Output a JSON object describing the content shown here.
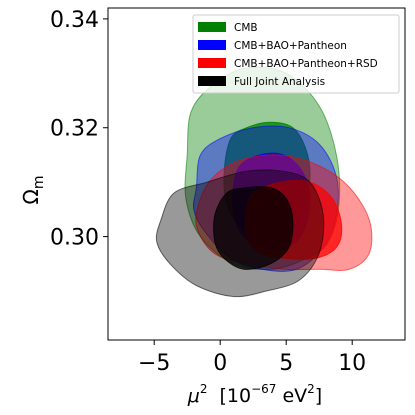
{
  "chart_data": {
    "type": "contour",
    "title": "",
    "xlabel": {
      "base": "μ",
      "sup": "2",
      "unit_prefix": "[10",
      "unit_exp": "−67",
      "unit_suffix": " eV",
      "unit_sup": "2",
      "close": "]"
    },
    "ylabel": {
      "base": "Ω",
      "sub": "m"
    },
    "xlim": [
      -8.5,
      14
    ],
    "ylim": [
      0.281,
      0.342
    ],
    "xticks": [
      {
        "value": -5,
        "label": "−5"
      },
      {
        "value": 0,
        "label": "0"
      },
      {
        "value": 5,
        "label": "5"
      },
      {
        "value": 10,
        "label": "10"
      }
    ],
    "yticks": [
      {
        "value": 0.3,
        "label": "0.30"
      },
      {
        "value": 0.32,
        "label": "0.32"
      },
      {
        "value": 0.34,
        "label": "0.34"
      }
    ],
    "legend_position": "top-right",
    "series": [
      {
        "name": "CMB",
        "color": "#008000",
        "outer": [
          [
            -2.5,
            0.315
          ],
          [
            -2.2,
            0.323
          ],
          [
            -0.5,
            0.328
          ],
          [
            2.0,
            0.331
          ],
          [
            5.0,
            0.33
          ],
          [
            7.5,
            0.324
          ],
          [
            8.8,
            0.315
          ],
          [
            9.0,
            0.306
          ],
          [
            8.2,
            0.299
          ],
          [
            6.5,
            0.296
          ],
          [
            4.0,
            0.294
          ],
          [
            1.0,
            0.295
          ],
          [
            -1.5,
            0.3
          ],
          [
            -2.6,
            0.307
          ]
        ],
        "inner": [
          [
            0.8,
            0.318
          ],
          [
            2.0,
            0.32
          ],
          [
            3.8,
            0.321
          ],
          [
            5.5,
            0.32
          ],
          [
            6.5,
            0.316
          ],
          [
            6.8,
            0.311
          ],
          [
            6.3,
            0.305
          ],
          [
            5.0,
            0.301
          ],
          [
            3.2,
            0.3
          ],
          [
            1.5,
            0.302
          ],
          [
            0.5,
            0.306
          ],
          [
            0.3,
            0.312
          ]
        ]
      },
      {
        "name": "CMB+BAO+Pantheon",
        "color": "#0000ff",
        "outer": [
          [
            -1.8,
            0.309
          ],
          [
            -1.5,
            0.315
          ],
          [
            0.0,
            0.318
          ],
          [
            2.5,
            0.32
          ],
          [
            5.2,
            0.32
          ],
          [
            7.5,
            0.317
          ],
          [
            8.8,
            0.311
          ],
          [
            8.8,
            0.304
          ],
          [
            7.8,
            0.298
          ],
          [
            5.8,
            0.294
          ],
          [
            3.2,
            0.294
          ],
          [
            0.8,
            0.296
          ],
          [
            -1.2,
            0.301
          ],
          [
            -2.0,
            0.305
          ]
        ],
        "inner": [
          [
            1.5,
            0.313
          ],
          [
            3.0,
            0.315
          ],
          [
            4.8,
            0.315
          ],
          [
            6.2,
            0.312
          ],
          [
            6.8,
            0.307
          ],
          [
            6.3,
            0.301
          ],
          [
            5.0,
            0.298
          ],
          [
            3.2,
            0.298
          ],
          [
            1.8,
            0.3
          ],
          [
            1.0,
            0.304
          ],
          [
            1.0,
            0.309
          ]
        ]
      },
      {
        "name": "CMB+BAO+Pantheon+RSD",
        "color": "#ff0000",
        "outer": [
          [
            -1.5,
            0.307
          ],
          [
            -0.5,
            0.311
          ],
          [
            1.5,
            0.314
          ],
          [
            4.5,
            0.315
          ],
          [
            7.5,
            0.313
          ],
          [
            9.8,
            0.309
          ],
          [
            11.3,
            0.303
          ],
          [
            11.3,
            0.297
          ],
          [
            9.8,
            0.294
          ],
          [
            7.5,
            0.294
          ],
          [
            4.8,
            0.294
          ],
          [
            2.0,
            0.295
          ],
          [
            -0.5,
            0.297
          ],
          [
            -1.8,
            0.302
          ]
        ],
        "inner": [
          [
            2.5,
            0.308
          ],
          [
            4.5,
            0.31
          ],
          [
            6.8,
            0.31
          ],
          [
            8.5,
            0.307
          ],
          [
            9.2,
            0.302
          ],
          [
            8.8,
            0.298
          ],
          [
            7.2,
            0.296
          ],
          [
            5.0,
            0.296
          ],
          [
            3.0,
            0.297
          ],
          [
            2.0,
            0.3
          ],
          [
            2.0,
            0.305
          ]
        ]
      },
      {
        "name": "Full Joint Analysis",
        "color": "#000000",
        "outer": [
          [
            -4.5,
            0.303
          ],
          [
            -3.5,
            0.308
          ],
          [
            -1.0,
            0.31
          ],
          [
            2.0,
            0.312
          ],
          [
            4.8,
            0.312
          ],
          [
            6.8,
            0.31
          ],
          [
            7.8,
            0.304
          ],
          [
            7.5,
            0.297
          ],
          [
            6.0,
            0.292
          ],
          [
            3.5,
            0.29
          ],
          [
            1.0,
            0.289
          ],
          [
            -1.8,
            0.291
          ],
          [
            -3.8,
            0.295
          ],
          [
            -4.8,
            0.299
          ]
        ],
        "inner": [
          [
            -0.4,
            0.304
          ],
          [
            0.5,
            0.308
          ],
          [
            2.0,
            0.309
          ],
          [
            3.8,
            0.309
          ],
          [
            5.0,
            0.307
          ],
          [
            5.5,
            0.303
          ],
          [
            5.2,
            0.298
          ],
          [
            3.8,
            0.295
          ],
          [
            1.8,
            0.294
          ],
          [
            0.3,
            0.296
          ],
          [
            -0.4,
            0.299
          ]
        ]
      }
    ]
  }
}
